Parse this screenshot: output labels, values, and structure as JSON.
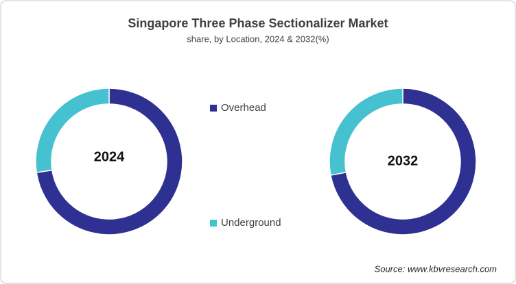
{
  "title": "Singapore Three Phase Sectionalizer Market",
  "subtitle": "share, by Location, 2024 & 2032(%)",
  "source": "Source: www.kbvresearch.com",
  "chart_data": [
    {
      "type": "donut",
      "center_label": "2024",
      "categories": [
        "Overhead",
        "Underground"
      ],
      "values": [
        72.6,
        27.4
      ],
      "colors": [
        "#2e3192",
        "#45c1cf"
      ]
    },
    {
      "type": "donut",
      "center_label": "2032",
      "categories": [
        "Overhead",
        "Underground"
      ],
      "values": [
        72.0,
        28.0
      ],
      "colors": [
        "#2e3192",
        "#45c1cf"
      ]
    }
  ]
}
